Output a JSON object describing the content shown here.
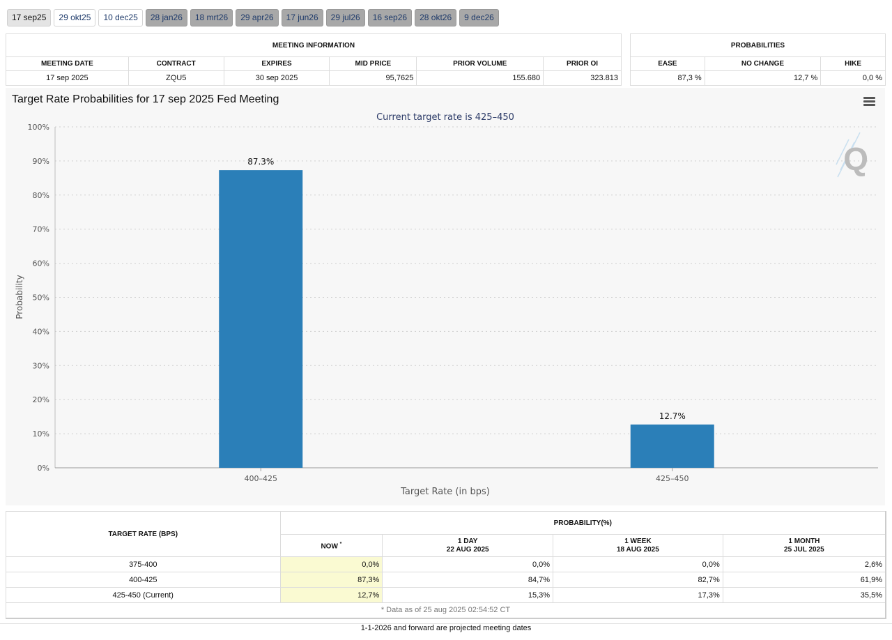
{
  "tabs": [
    {
      "label": "17 sep25",
      "state": "active"
    },
    {
      "label": "29 okt25",
      "state": "plain"
    },
    {
      "label": "10 dec25",
      "state": "plain"
    },
    {
      "label": "28 jan26",
      "state": "grey"
    },
    {
      "label": "18 mrt26",
      "state": "grey"
    },
    {
      "label": "29 apr26",
      "state": "grey"
    },
    {
      "label": "17 jun26",
      "state": "grey"
    },
    {
      "label": "29 jul26",
      "state": "grey"
    },
    {
      "label": "16 sep26",
      "state": "grey"
    },
    {
      "label": "28 okt26",
      "state": "grey"
    },
    {
      "label": "9 dec26",
      "state": "grey"
    }
  ],
  "meeting_info": {
    "title": "MEETING INFORMATION",
    "headers": [
      "MEETING DATE",
      "CONTRACT",
      "EXPIRES",
      "MID PRICE",
      "PRIOR VOLUME",
      "PRIOR OI"
    ],
    "row": {
      "meeting_date": "17 sep 2025",
      "contract": "ZQU5",
      "expires": "30 sep 2025",
      "mid_price": "95,7625",
      "prior_volume": "155.680",
      "prior_oi": "323.813"
    }
  },
  "probabilities": {
    "title": "PROBABILITIES",
    "headers": [
      "EASE",
      "NO CHANGE",
      "HIKE"
    ],
    "row": {
      "ease": "87,3 %",
      "no_change": "12,7 %",
      "hike": "0,0 %"
    }
  },
  "chart": {
    "title": "Target Rate Probabilities for 17 sep 2025 Fed Meeting",
    "menu_icon": "hamburger-menu-icon",
    "watermark_icon": "q-logo-icon"
  },
  "chart_data": {
    "type": "bar",
    "title": "Target Rate Probabilities for 17 sep 2025 Fed Meeting",
    "subtitle": "Current target rate is 425–450",
    "categories": [
      "400–425",
      "425–450"
    ],
    "values": [
      87.3,
      12.7
    ],
    "data_labels": [
      "87.3%",
      "12.7%"
    ],
    "xlabel": "Target Rate (in bps)",
    "ylabel": "Probability",
    "ylim": [
      0,
      100
    ],
    "yticks": [
      "0%",
      "10%",
      "20%",
      "30%",
      "40%",
      "50%",
      "60%",
      "70%",
      "80%",
      "90%",
      "100%"
    ],
    "grid": true,
    "bar_color": "#2b7fb8"
  },
  "history": {
    "col_target": "TARGET RATE (BPS)",
    "col_prob": "PROBABILITY(%)",
    "col_now": "NOW",
    "now_marker": "*",
    "col_1day": "1 DAY",
    "col_1day_date": "22 AUG 2025",
    "col_1week": "1 WEEK",
    "col_1week_date": "18 AUG 2025",
    "col_1month": "1 MONTH",
    "col_1month_date": "25 JUL 2025",
    "rows": [
      {
        "rate": "375-400",
        "now": "0,0%",
        "day": "0,0%",
        "week": "0,0%",
        "month": "2,6%"
      },
      {
        "rate": "400-425",
        "now": "87,3%",
        "day": "84,7%",
        "week": "82,7%",
        "month": "61,9%"
      },
      {
        "rate": "425-450 (Current)",
        "now": "12,7%",
        "day": "15,3%",
        "week": "17,3%",
        "month": "35,5%"
      }
    ],
    "note": "* Data as of 25 aug 2025 02:54:52 CT"
  },
  "footer": "1-1-2026 and forward are projected meeting dates"
}
